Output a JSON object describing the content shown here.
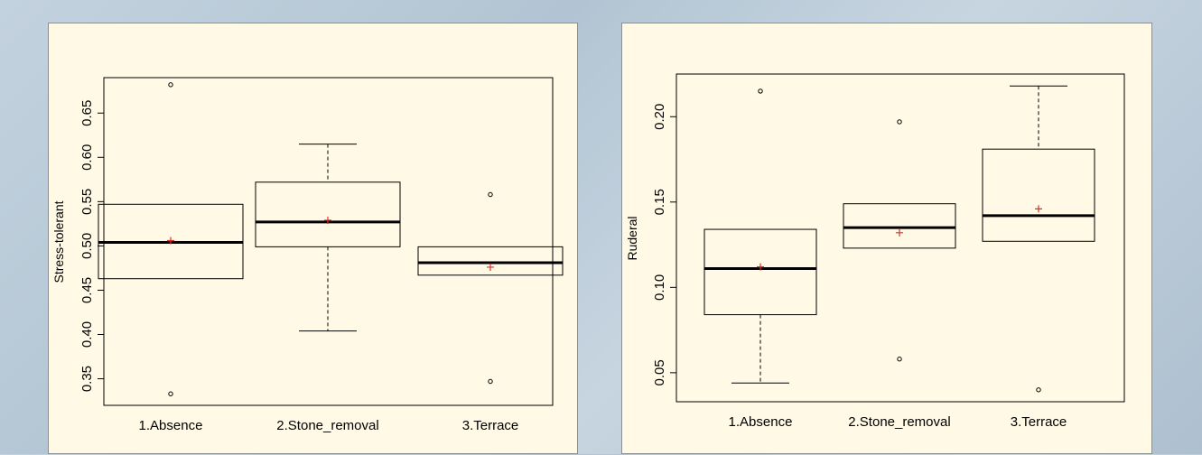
{
  "chart_data": [
    {
      "type": "boxplot",
      "xlabel": "",
      "ylabel": "Stress-tolerant",
      "categories": [
        "1.Absence",
        "2.Stone_removal",
        "3.Terrace"
      ],
      "yticks": [
        0.35,
        0.4,
        0.45,
        0.5,
        0.55,
        0.6,
        0.65
      ],
      "ylim": [
        0.32,
        0.69
      ],
      "boxes": [
        {
          "whisker_low": null,
          "q1": 0.463,
          "median": 0.504,
          "q3": 0.547,
          "whisker_high": null,
          "mean": 0.506,
          "outliers": [
            0.682,
            0.333
          ]
        },
        {
          "whisker_low": 0.404,
          "q1": 0.499,
          "median": 0.527,
          "q3": 0.572,
          "whisker_high": 0.615,
          "mean": 0.529,
          "outliers": []
        },
        {
          "whisker_low": null,
          "q1": 0.467,
          "median": 0.481,
          "q3": 0.499,
          "whisker_high": null,
          "mean": 0.476,
          "outliers": [
            0.558,
            0.347
          ]
        }
      ],
      "mean_color": "#e0302a"
    },
    {
      "type": "boxplot",
      "xlabel": "",
      "ylabel": "Ruderal",
      "categories": [
        "1.Absence",
        "2.Stone_removal",
        "3.Terrace"
      ],
      "yticks": [
        0.05,
        0.1,
        0.15,
        0.2
      ],
      "ylim": [
        0.033,
        0.225
      ],
      "boxes": [
        {
          "whisker_low": 0.044,
          "q1": 0.084,
          "median": 0.111,
          "q3": 0.134,
          "whisker_high": null,
          "mean": 0.112,
          "outliers": [
            0.215
          ]
        },
        {
          "whisker_low": null,
          "q1": 0.123,
          "median": 0.135,
          "q3": 0.149,
          "whisker_high": null,
          "mean": 0.132,
          "outliers": [
            0.197,
            0.058
          ]
        },
        {
          "whisker_low": null,
          "q1": 0.127,
          "median": 0.142,
          "q3": 0.181,
          "whisker_high": 0.218,
          "mean": 0.146,
          "outliers": [
            0.04
          ]
        }
      ],
      "mean_color": "#e0302a"
    }
  ]
}
